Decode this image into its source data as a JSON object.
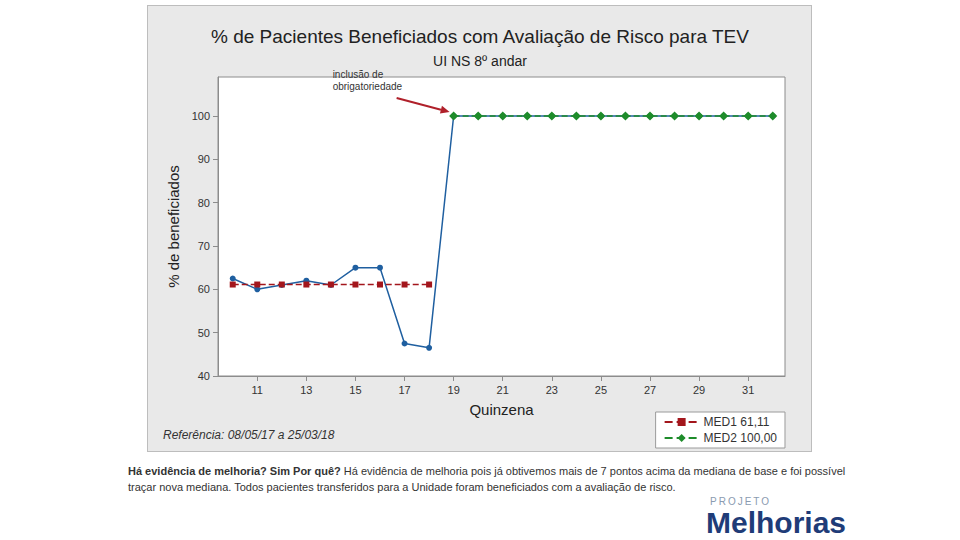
{
  "chart_data": {
    "type": "line",
    "title": "% de Pacientes Beneficiados com Avaliação de Risco para TEV",
    "subtitle": "UI NS 8º andar",
    "x_label": "Quinzena",
    "y_label": "% de beneficiados",
    "footnote": "Referência: 08/05/17 a 25/03/18",
    "annotations": [
      {
        "text": "inclusão de\nobrigatoriedade",
        "x": 19,
        "y": 100
      }
    ],
    "x": [
      10,
      11,
      12,
      13,
      14,
      15,
      16,
      17,
      18,
      19,
      20,
      21,
      22,
      23,
      24,
      25,
      26,
      27,
      28,
      29,
      30,
      31,
      32
    ],
    "series": [
      {
        "color": "#1f5fa0",
        "marker": "circle",
        "line_style": "solid",
        "values": [
          62.5,
          60,
          61,
          62,
          61,
          65,
          65,
          47.5,
          46.5,
          100,
          100,
          100,
          100,
          100,
          100,
          100,
          100,
          100,
          100,
          100,
          100,
          100,
          100
        ]
      },
      {
        "name": "MED1 61,11",
        "color": "#a3161c",
        "marker": "rect",
        "line_style": "dashed",
        "values": [
          61.11,
          61.11,
          61.11,
          61.11,
          61.11,
          61.11,
          61.11,
          61.11,
          61.11,
          null,
          null,
          null,
          null,
          null,
          null,
          null,
          null,
          null,
          null,
          null,
          null,
          null,
          null
        ]
      },
      {
        "name": "MED2 100,00",
        "color": "#1e8c2a",
        "marker": "diamond",
        "line_style": "dashed",
        "values": [
          null,
          null,
          null,
          null,
          null,
          null,
          null,
          null,
          null,
          100,
          100,
          100,
          100,
          100,
          100,
          100,
          100,
          100,
          100,
          100,
          100,
          100,
          100
        ]
      }
    ],
    "xlim": [
      9.4,
      32.5
    ],
    "xticks": [
      11,
      13,
      15,
      17,
      19,
      21,
      23,
      25,
      27,
      29,
      31
    ],
    "ylim": [
      40,
      109
    ],
    "yticks": [
      40,
      50,
      60,
      70,
      80,
      90,
      100
    ],
    "grid": false,
    "legend": "bottom-right"
  },
  "page": {
    "caption": {
      "question": "Há evidência de melhoria? Sim Por quê?",
      "answer": "Há evidência de melhoria pois já obtivemos mais de 7 pontos acima da mediana de base e foi possível traçar nova mediana. Todos pacientes transferidos para a Unidade foram beneficiados com a avaliação de risco."
    },
    "logo": {
      "small": "PROJETO",
      "big": "Melhorias"
    }
  }
}
